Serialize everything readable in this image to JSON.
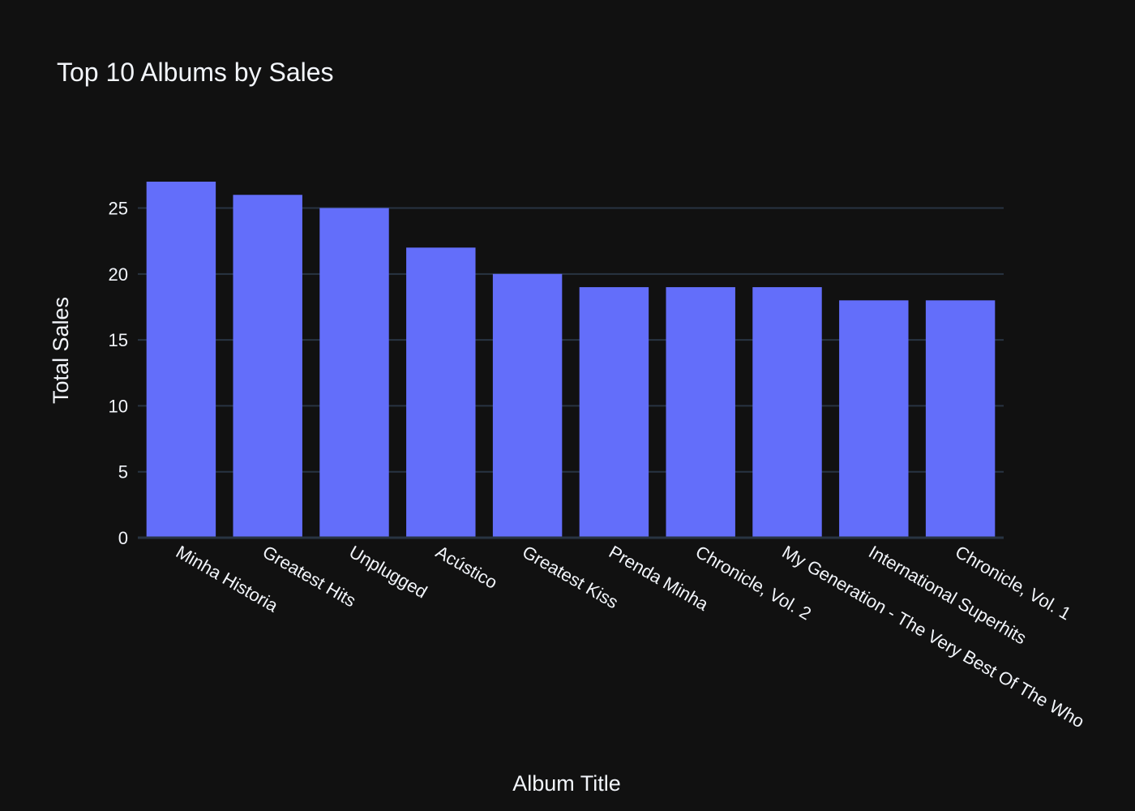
{
  "chart_data": {
    "type": "bar",
    "title": "Top 10 Albums by Sales",
    "xlabel": "Album Title",
    "ylabel": "Total Sales",
    "categories": [
      "Minha Historia",
      "Greatest Hits",
      "Unplugged",
      "Acústico",
      "Greatest Kiss",
      "Prenda Minha",
      "Chronicle, Vol. 2",
      "My Generation - The Very Best Of The Who",
      "International Superhits",
      "Chronicle, Vol. 1"
    ],
    "values": [
      27,
      26,
      25,
      22,
      20,
      19,
      19,
      19,
      18,
      18
    ],
    "ylim": [
      0,
      27
    ],
    "yticks": [
      "0",
      "5",
      "10",
      "15",
      "20",
      "25"
    ],
    "grid": true,
    "legend": "none",
    "colors": {
      "background": "#111111",
      "bar": "#636efa",
      "grid": "#283442",
      "text": "#f2f5fa"
    }
  }
}
